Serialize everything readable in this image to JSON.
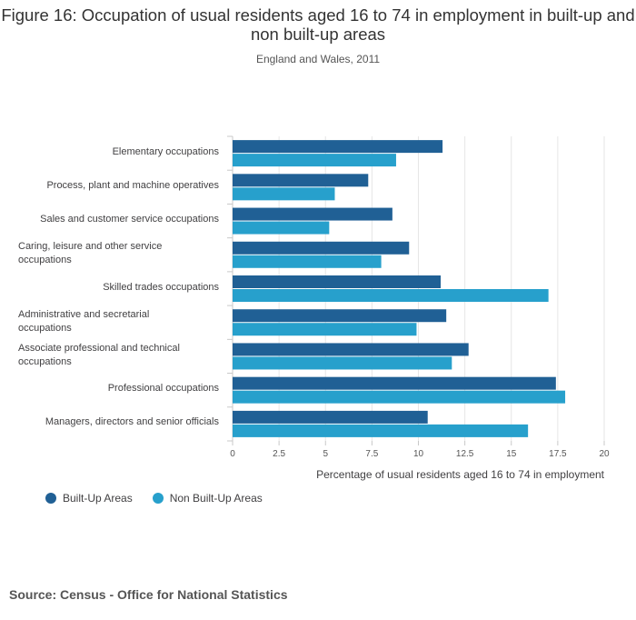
{
  "chart_data": {
    "type": "bar",
    "orientation": "horizontal",
    "title": "Figure 16: Occupation of usual residents aged 16 to 74 in employment in built-up and non built-up areas",
    "subtitle": "England and Wales, 2011",
    "xlabel": "Percentage of usual residents aged 16 to 74 in employment",
    "ylabel": "",
    "xlim": [
      0,
      20
    ],
    "xticks": [
      "0",
      "2.5",
      "5",
      "7.5",
      "10",
      "12.5",
      "15",
      "17.5",
      "20"
    ],
    "categories": [
      "Elementary occupations",
      "Process, plant and machine operatives",
      "Sales and customer service occupations",
      "Caring, leisure and other service occupations",
      "Skilled trades occupations",
      "Administrative and secretarial occupations",
      "Associate professional and technical occupations",
      "Professional occupations",
      "Managers, directors and senior officials"
    ],
    "series": [
      {
        "name": "Built-Up Areas",
        "color": "#206095",
        "values": [
          11.3,
          7.3,
          8.6,
          9.5,
          11.2,
          11.5,
          12.7,
          17.4,
          10.5
        ]
      },
      {
        "name": "Non Built-Up Areas",
        "color": "#27a0cc",
        "values": [
          8.8,
          5.5,
          5.2,
          8.0,
          17.0,
          9.9,
          11.8,
          17.9,
          15.9
        ]
      }
    ],
    "grid": true,
    "legend": "bottom-left"
  },
  "source": "Source: Census - Office for National Statistics"
}
